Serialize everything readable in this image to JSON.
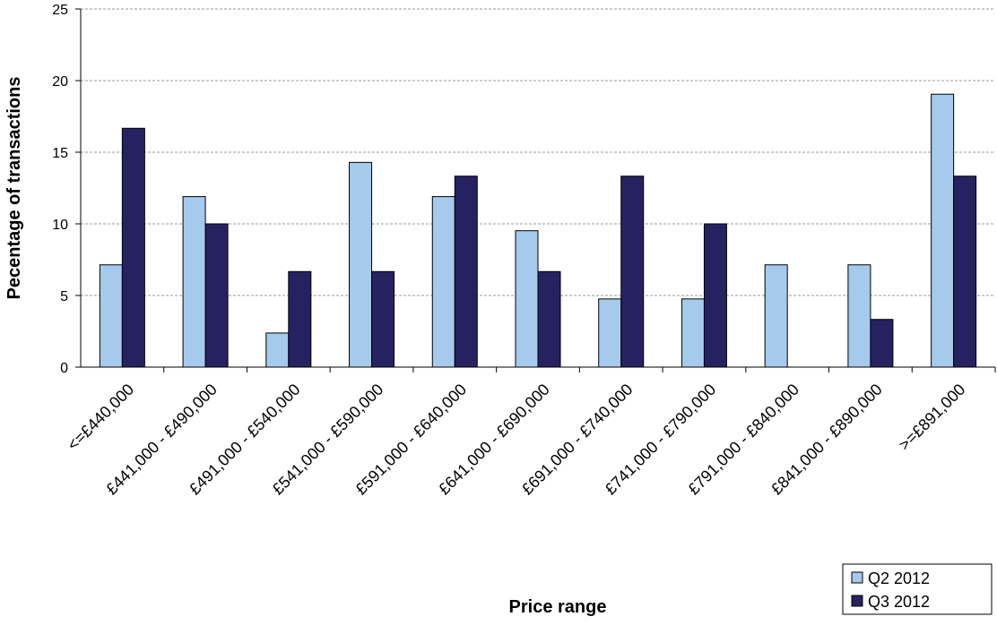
{
  "chart_data": {
    "type": "bar",
    "x_label": "Price range",
    "y_label": "Pecentage of transactions",
    "categories": [
      "<=£440,000",
      "£441,000 - £490,000",
      "£491,000 - £540,000",
      "£541,000 - £590,000",
      "£591,000 - £640,000",
      "£641,000 - £690,000",
      "£691,000 - £740,000",
      "£741,000 - £790,000",
      "£791,000 - £840,000",
      "£841,000 - £890,000",
      ">=£891,000"
    ],
    "series": [
      {
        "name": "Q2 2012",
        "color": "#a6caec",
        "values": [
          7.14,
          11.9,
          2.38,
          14.29,
          11.9,
          9.52,
          4.76,
          4.76,
          7.14,
          7.14,
          19.05
        ]
      },
      {
        "name": "Q3 2012",
        "color": "#262262",
        "values": [
          16.67,
          10,
          6.67,
          6.67,
          13.33,
          6.67,
          13.33,
          10,
          0,
          3.33,
          13.33
        ]
      }
    ],
    "ylim": [
      0,
      25
    ],
    "yticks": [
      0,
      5,
      10,
      15,
      20,
      25
    ],
    "grid": true,
    "legend": "bottom-right"
  }
}
